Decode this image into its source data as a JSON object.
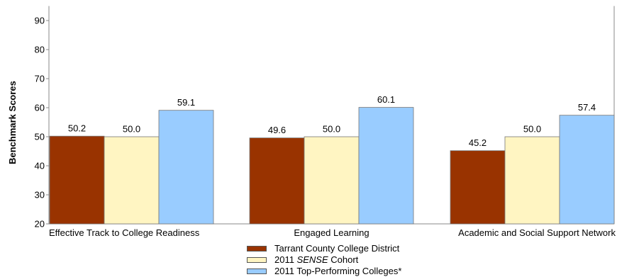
{
  "chart_data": {
    "type": "bar",
    "categories": [
      "Effective Track to College Readiness",
      "Engaged Learning",
      "Academic and Social Support Network"
    ],
    "series": [
      {
        "name": "Tarrant County College District",
        "name_prefix": "",
        "name_em": "",
        "name_suffix": "",
        "values": [
          50.2,
          49.6,
          45.2
        ],
        "labels": [
          "50.2",
          "49.6",
          "45.2"
        ],
        "color": "#993300"
      },
      {
        "name": "2011 SENSE Cohort",
        "name_prefix": "2011 ",
        "name_em": "SENSE",
        "name_suffix": " Cohort",
        "values": [
          50.0,
          50.0,
          50.0
        ],
        "labels": [
          "50.0",
          "50.0",
          "50.0"
        ],
        "color": "#FFF5C2"
      },
      {
        "name": "2011 Top-Performing Colleges*",
        "name_prefix": "",
        "name_em": "",
        "name_suffix": "",
        "values": [
          59.1,
          60.1,
          57.4
        ],
        "labels": [
          "59.1",
          "60.1",
          "57.4"
        ],
        "color": "#99CCFF"
      }
    ],
    "title": "",
    "xlabel": "",
    "ylabel": "Benchmark Scores",
    "ylim": [
      20,
      95
    ],
    "yticks": [
      20,
      30,
      40,
      50,
      60,
      70,
      80,
      90
    ],
    "grid": false,
    "legend_position": "bottom"
  }
}
